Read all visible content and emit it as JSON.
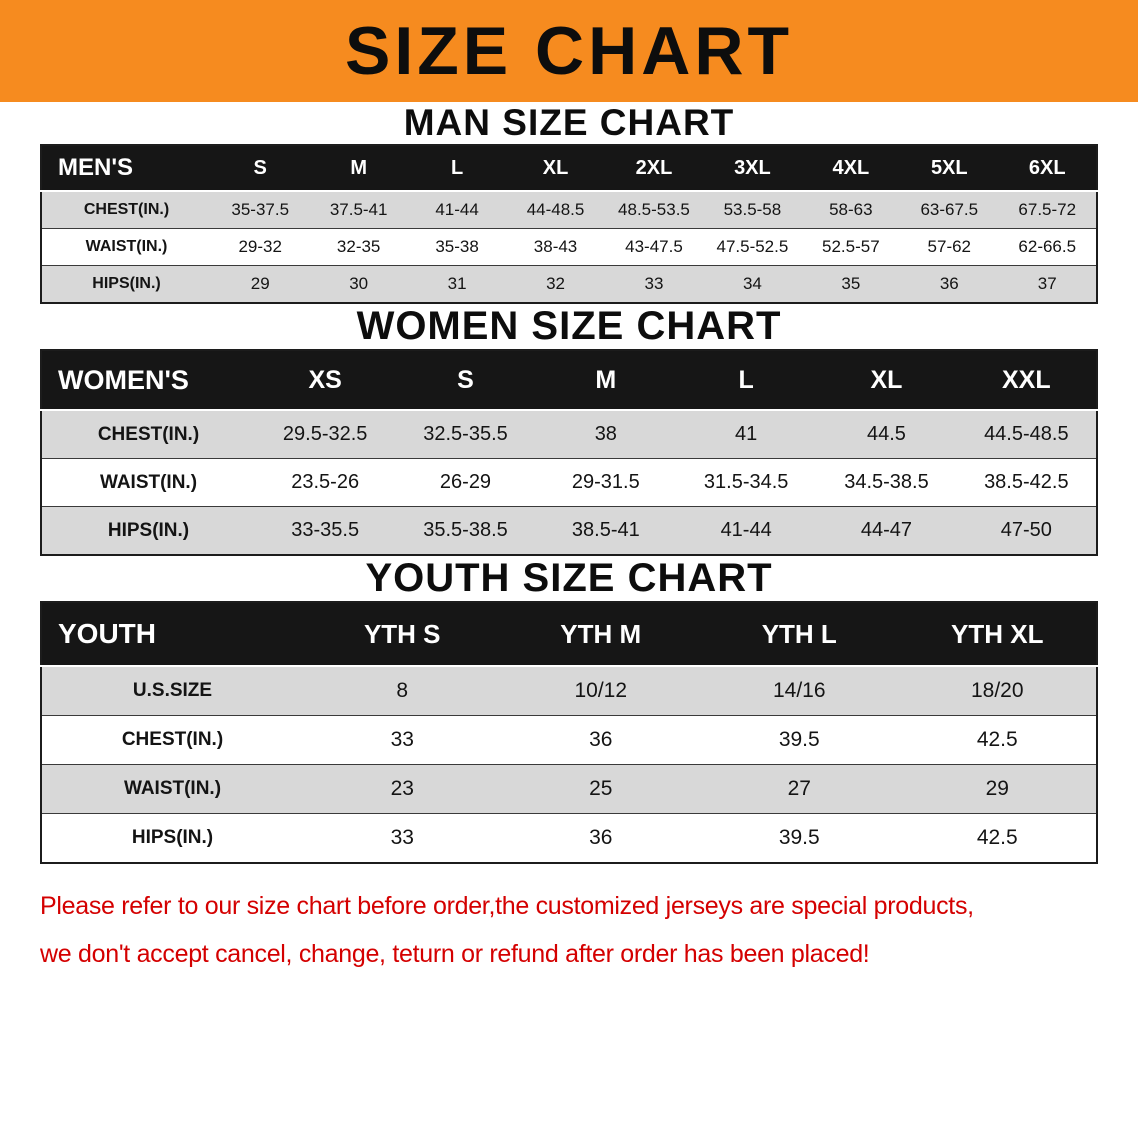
{
  "banner": {
    "title": "SIZE CHART"
  },
  "sections": [
    {
      "heading": "MAN SIZE CHART",
      "table": {
        "label": "MEN'S",
        "columns": [
          "S",
          "M",
          "L",
          "XL",
          "2XL",
          "3XL",
          "4XL",
          "5XL",
          "6XL"
        ],
        "rows": [
          {
            "label": "CHEST(IN.)",
            "values": [
              "35-37.5",
              "37.5-41",
              "41-44",
              "44-48.5",
              "48.5-53.5",
              "53.5-58",
              "58-63",
              "63-67.5",
              "67.5-72"
            ]
          },
          {
            "label": "WAIST(IN.)",
            "values": [
              "29-32",
              "32-35",
              "35-38",
              "38-43",
              "43-47.5",
              "47.5-52.5",
              "52.5-57",
              "57-62",
              "62-66.5"
            ]
          },
          {
            "label": "HIPS(IN.)",
            "values": [
              "29",
              "30",
              "31",
              "32",
              "33",
              "34",
              "35",
              "36",
              "37"
            ]
          }
        ]
      }
    },
    {
      "heading": "WOMEN SIZE CHART",
      "table": {
        "label": "WOMEN'S",
        "columns": [
          "XS",
          "S",
          "M",
          "L",
          "XL",
          "XXL"
        ],
        "rows": [
          {
            "label": "CHEST(IN.)",
            "values": [
              "29.5-32.5",
              "32.5-35.5",
              "38",
              "41",
              "44.5",
              "44.5-48.5"
            ]
          },
          {
            "label": "WAIST(IN.)",
            "values": [
              "23.5-26",
              "26-29",
              "29-31.5",
              "31.5-34.5",
              "34.5-38.5",
              "38.5-42.5"
            ]
          },
          {
            "label": "HIPS(IN.)",
            "values": [
              "33-35.5",
              "35.5-38.5",
              "38.5-41",
              "41-44",
              "44-47",
              "47-50"
            ]
          }
        ]
      }
    },
    {
      "heading": "YOUTH SIZE CHART",
      "table": {
        "label": "YOUTH",
        "columns": [
          "YTH S",
          "YTH M",
          "YTH L",
          "YTH XL"
        ],
        "rows": [
          {
            "label": "U.S.SIZE",
            "values": [
              "8",
              "10/12",
              "14/16",
              "18/20"
            ]
          },
          {
            "label": "CHEST(IN.)",
            "values": [
              "33",
              "36",
              "39.5",
              "42.5"
            ]
          },
          {
            "label": "WAIST(IN.)",
            "values": [
              "23",
              "25",
              "27",
              "29"
            ]
          },
          {
            "label": "HIPS(IN.)",
            "values": [
              "33",
              "36",
              "39.5",
              "42.5"
            ]
          }
        ]
      }
    }
  ],
  "footer": {
    "line1": "Please refer to our size chart before order,the customized jerseys are special products,",
    "line2": "we don't accept cancel, change, teturn or refund after order has been placed!"
  },
  "colors": {
    "banner_bg": "#f68b1f",
    "header_bg": "#161616",
    "row_alt_bg": "#d8d8d8",
    "footer_text": "#d40000"
  }
}
